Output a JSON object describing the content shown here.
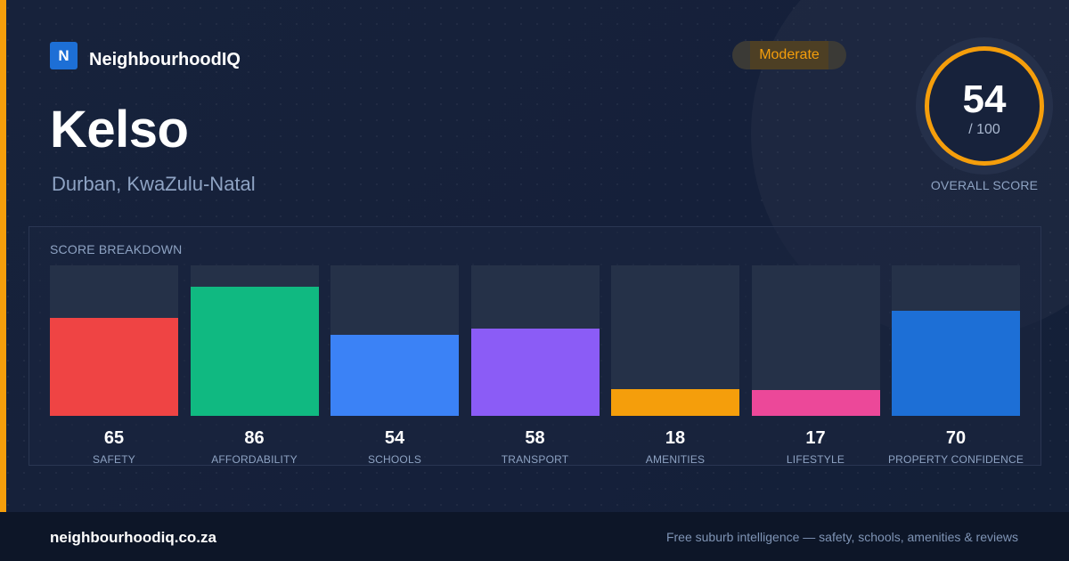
{
  "brand": {
    "logo_letter": "N",
    "name": "NeighbourhoodIQ"
  },
  "suburb": {
    "name": "Kelso",
    "location": "Durban, KwaZulu-Natal"
  },
  "rating_badge": {
    "label": "Moderate",
    "color": "#f59e0b"
  },
  "overall": {
    "score": "54",
    "max_label": "/ 100",
    "caption": "OVERALL SCORE"
  },
  "breakdown": {
    "title": "SCORE BREAKDOWN",
    "max": 100,
    "items": [
      {
        "label": "SAFETY",
        "value": 65,
        "color": "#ef4444"
      },
      {
        "label": "AFFORDABILITY",
        "value": 86,
        "color": "#10b981"
      },
      {
        "label": "SCHOOLS",
        "value": 54,
        "color": "#3b82f6"
      },
      {
        "label": "TRANSPORT",
        "value": 58,
        "color": "#8b5cf6"
      },
      {
        "label": "AMENITIES",
        "value": 18,
        "color": "#f59e0b"
      },
      {
        "label": "LIFESTYLE",
        "value": 17,
        "color": "#ec4899"
      },
      {
        "label": "PROPERTY CONFIDENCE",
        "value": 70,
        "color": "#1d6fd6"
      }
    ]
  },
  "footer": {
    "domain": "neighbourhoodiq.co.za",
    "tagline": "Free suburb intelligence — safety, schools, amenities & reviews"
  }
}
